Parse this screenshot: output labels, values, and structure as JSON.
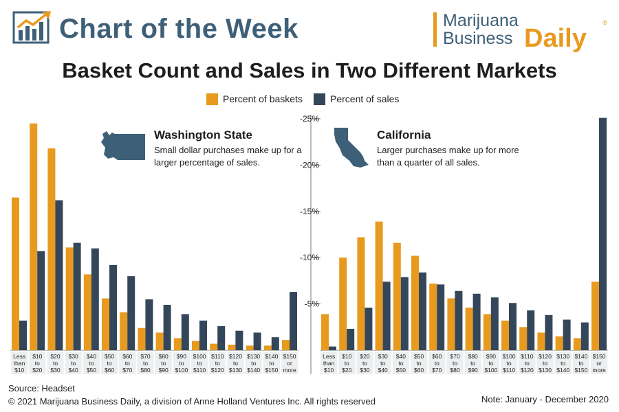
{
  "banner": {
    "title": "Chart of the Week"
  },
  "brand": {
    "line1": "Marijuana",
    "line2a": "Business",
    "line2b": "Daily",
    "reg": "®"
  },
  "chart_data": {
    "type": "bar",
    "title": "Basket Count and Sales in Two Different Markets",
    "legend": [
      {
        "name": "Percent of baskets",
        "color": "#e89a1f"
      },
      {
        "name": "Percent of sales",
        "color": "#34465a"
      }
    ],
    "y_ticks": [
      "-5%",
      "-10%",
      "-15%",
      "-20%",
      "-25%"
    ],
    "ylim": [
      0,
      25
    ],
    "categories": [
      [
        "Less",
        "than",
        "$10"
      ],
      [
        "$10",
        "to",
        "$20"
      ],
      [
        "$20",
        "to",
        "$30"
      ],
      [
        "$30",
        "to",
        "$40"
      ],
      [
        "$40",
        "to",
        "$50"
      ],
      [
        "$50",
        "to",
        "$60"
      ],
      [
        "$60",
        "to",
        "$70"
      ],
      [
        "$70",
        "to",
        "$80"
      ],
      [
        "$80",
        "to",
        "$90"
      ],
      [
        "$90",
        "to",
        "$100"
      ],
      [
        "$100",
        "to",
        "$110"
      ],
      [
        "$110",
        "to",
        "$120"
      ],
      [
        "$120",
        "to",
        "$130"
      ],
      [
        "$130",
        "to",
        "$140"
      ],
      [
        "$140",
        "to",
        "$150"
      ],
      [
        "$150",
        "or",
        "more"
      ]
    ],
    "panels": [
      {
        "name": "Washington State",
        "subtitle": "Small dollar purchases make up for a larger percentage of sales.",
        "series": [
          {
            "name": "Percent of baskets",
            "values": [
              16.5,
              24.5,
              21.8,
              11.1,
              8.2,
              5.6,
              4.1,
              2.4,
              1.9,
              1.3,
              1.0,
              0.7,
              0.6,
              0.5,
              0.5,
              1.1
            ]
          },
          {
            "name": "Percent of sales",
            "values": [
              3.2,
              10.7,
              16.2,
              11.6,
              11.0,
              9.2,
              8.0,
              5.5,
              4.9,
              3.9,
              3.2,
              2.6,
              2.1,
              1.9,
              1.4,
              6.3
            ]
          }
        ]
      },
      {
        "name": "California",
        "subtitle": "Larger purchases make up for more than a quarter of all sales.",
        "series": [
          {
            "name": "Percent of baskets",
            "values": [
              3.9,
              10.0,
              12.2,
              13.9,
              11.6,
              10.2,
              7.2,
              5.6,
              4.6,
              3.9,
              3.2,
              2.5,
              1.9,
              1.5,
              1.3,
              7.4
            ]
          },
          {
            "name": "Percent of sales",
            "values": [
              0.4,
              2.3,
              4.6,
              7.4,
              7.9,
              8.4,
              7.1,
              6.4,
              6.1,
              5.7,
              5.1,
              4.3,
              3.8,
              3.3,
              3.0,
              25.1
            ]
          }
        ]
      }
    ]
  },
  "footer": {
    "source": "Source: Headset",
    "copyright": "© 2021 Marijuana Business Daily, a division of Anne Holland Ventures Inc. All rights reserved",
    "note": "Note: January - December 2020"
  }
}
